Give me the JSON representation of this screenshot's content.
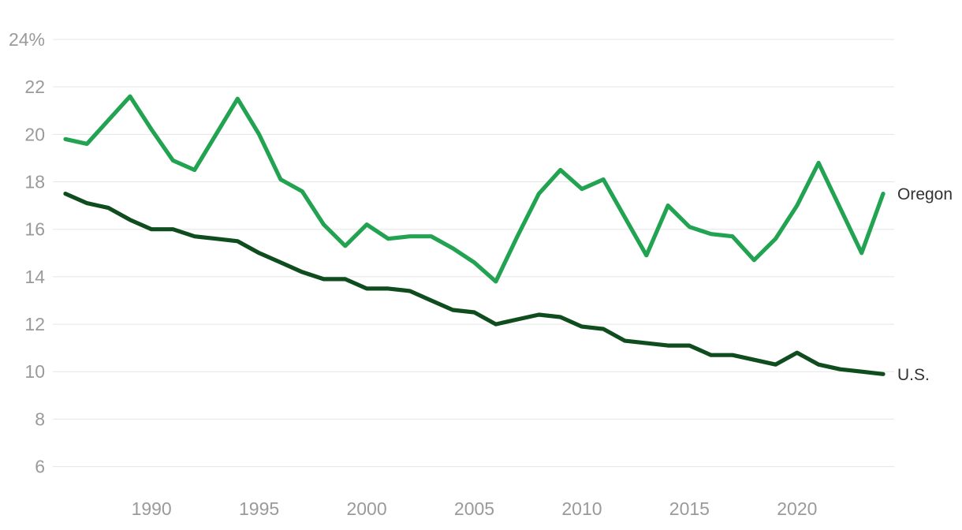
{
  "chart_data": {
    "type": "line",
    "title": "",
    "xlabel": "",
    "ylabel": "",
    "grid": true,
    "legend_position": "end-of-line",
    "xlim": [
      1986,
      2024
    ],
    "ylim": [
      6,
      24
    ],
    "x": [
      1986,
      1987,
      1988,
      1989,
      1990,
      1991,
      1992,
      1993,
      1994,
      1995,
      1996,
      1997,
      1998,
      1999,
      2000,
      2001,
      2002,
      2003,
      2004,
      2005,
      2006,
      2007,
      2008,
      2009,
      2010,
      2011,
      2012,
      2013,
      2014,
      2015,
      2016,
      2017,
      2018,
      2019,
      2020,
      2021,
      2022,
      2023,
      2024
    ],
    "series": [
      {
        "name": "Oregon",
        "color": "#22a351",
        "values": [
          19.8,
          19.6,
          20.6,
          21.6,
          20.2,
          18.9,
          18.5,
          20.0,
          21.5,
          20.0,
          18.1,
          17.6,
          16.2,
          15.3,
          16.2,
          15.6,
          15.7,
          15.7,
          15.2,
          14.6,
          13.8,
          15.7,
          17.5,
          18.5,
          17.7,
          18.1,
          16.5,
          14.9,
          17.0,
          16.1,
          15.8,
          15.7,
          14.7,
          15.6,
          17.0,
          18.8,
          16.9,
          15.0,
          17.5
        ]
      },
      {
        "name": "U.S.",
        "color": "#0f4d1e",
        "values": [
          17.5,
          17.1,
          16.9,
          16.4,
          16.0,
          16.0,
          15.7,
          15.6,
          15.5,
          15.0,
          14.6,
          14.2,
          13.9,
          13.9,
          13.5,
          13.5,
          13.4,
          13.0,
          12.6,
          12.5,
          12.0,
          12.2,
          12.4,
          12.3,
          11.9,
          11.8,
          11.3,
          11.2,
          11.1,
          11.1,
          10.7,
          10.7,
          10.5,
          10.3,
          10.8,
          10.3,
          10.1,
          10.0,
          9.9
        ]
      }
    ],
    "y_ticks": {
      "values": [
        24,
        22,
        20,
        18,
        16,
        14,
        12,
        10,
        8,
        6
      ],
      "labels": [
        "24%",
        "22",
        "20",
        "18",
        "16",
        "14",
        "12",
        "10",
        "8",
        "6"
      ]
    },
    "x_ticks": {
      "values": [
        1990,
        1995,
        2000,
        2005,
        2010,
        2015,
        2020
      ],
      "labels": [
        "1990",
        "1995",
        "2000",
        "2005",
        "2010",
        "2015",
        "2020"
      ]
    },
    "colors": {
      "background": "#ffffff",
      "grid": "#e5e5e5",
      "tick_text": "#9a9a9a",
      "series_label_text": "#333333"
    }
  }
}
